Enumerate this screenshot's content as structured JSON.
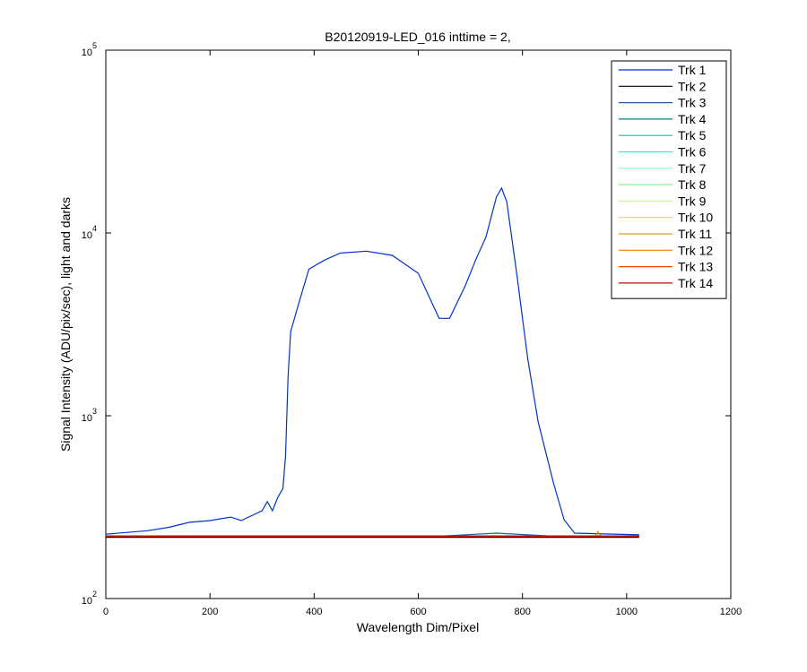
{
  "chart_data": {
    "type": "line",
    "title": "B20120919-LED_016 inttime = 2,",
    "xlabel": "Wavelength Dim/Pixel",
    "ylabel": "Signal Intensity (ADU/pix/sec), light and darks",
    "xlim": [
      0,
      1200
    ],
    "xticks": [
      0,
      200,
      400,
      600,
      800,
      1000,
      1200
    ],
    "ylim": [
      100,
      100000
    ],
    "log_y": true,
    "yticks": [
      {
        "value": 100,
        "label": "10",
        "exponent": "2"
      },
      {
        "value": 1000,
        "label": "10",
        "exponent": "3"
      },
      {
        "value": 10000,
        "label": "10",
        "exponent": "4"
      },
      {
        "value": 100000,
        "label": "10",
        "exponent": "5"
      }
    ],
    "legend": "upper right",
    "series": [
      {
        "name": "Trk 1",
        "color": "#0033cc",
        "x": [
          0,
          80,
          120,
          160,
          200,
          240,
          260,
          300,
          310,
          320,
          330,
          340,
          345,
          350,
          355,
          370,
          390,
          420,
          450,
          500,
          550,
          600,
          640,
          660,
          690,
          710,
          730,
          750,
          760,
          770,
          790,
          810,
          830,
          860,
          880,
          900,
          1024
        ],
        "values": [
          225,
          235,
          245,
          261,
          267,
          279,
          267,
          302,
          339,
          302,
          357,
          400,
          596,
          1645,
          2890,
          4070,
          6340,
          7100,
          7760,
          7950,
          7540,
          6020,
          3410,
          3410,
          5130,
          7100,
          9520,
          15700,
          17600,
          14800,
          5690,
          2060,
          929,
          424,
          270,
          228,
          223
        ]
      },
      {
        "name": "Trk 2",
        "color": "#000000",
        "x": [
          0,
          1024
        ],
        "values": [
          218,
          218
        ]
      },
      {
        "name": "Trk 3",
        "color": "#1f5fa8",
        "x": [
          0,
          650,
          750,
          850,
          1024
        ],
        "values": [
          220,
          220,
          228,
          220,
          220
        ]
      },
      {
        "name": "Trk 4",
        "color": "#008080",
        "x": [
          0,
          1024
        ],
        "values": [
          220,
          220
        ]
      },
      {
        "name": "Trk 5",
        "color": "#00bfbf",
        "x": [
          0,
          1024
        ],
        "values": [
          220,
          220
        ]
      },
      {
        "name": "Trk 6",
        "color": "#40e0d0",
        "x": [
          0,
          1024
        ],
        "values": [
          220,
          220
        ]
      },
      {
        "name": "Trk 7",
        "color": "#7fffd4",
        "x": [
          0,
          1024
        ],
        "values": [
          220,
          220
        ]
      },
      {
        "name": "Trk 8",
        "color": "#90ee90",
        "x": [
          0,
          1024
        ],
        "values": [
          220,
          220
        ]
      },
      {
        "name": "Trk 9",
        "color": "#c0ff80",
        "x": [
          0,
          1024
        ],
        "values": [
          220,
          220
        ]
      },
      {
        "name": "Trk 10",
        "color": "#e5e500",
        "x": [
          0,
          1024
        ],
        "values": [
          220,
          220
        ]
      },
      {
        "name": "Trk 11",
        "color": "#e6a000",
        "x": [
          0,
          1024
        ],
        "values": [
          220,
          220
        ]
      },
      {
        "name": "Trk 12",
        "color": "#ff8000",
        "x": [
          0,
          940,
          945,
          950,
          1024
        ],
        "values": [
          220,
          220,
          232,
          220,
          220
        ]
      },
      {
        "name": "Trk 13",
        "color": "#ff4000",
        "x": [
          0,
          1024
        ],
        "values": [
          220,
          220
        ]
      },
      {
        "name": "Trk 14",
        "color": "#e00000",
        "x": [
          0,
          1024
        ],
        "values": [
          220,
          220
        ]
      }
    ]
  }
}
